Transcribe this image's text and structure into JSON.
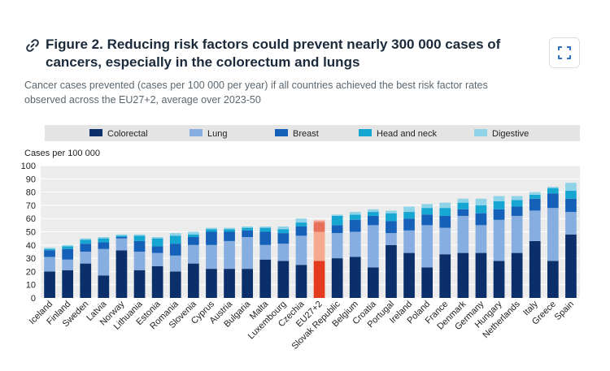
{
  "header": {
    "title": "Figure 2. Reducing risk factors could prevent nearly 300 000 cases of cancers, especially in the colorectum and lungs",
    "subtitle": "Cancer cases prevented (cases per 100 000 per year) if all countries achieved the best risk factor rates observed across the EU27+2, average over 2023-50",
    "link_icon": "link-icon",
    "expand_icon": "expand-icon"
  },
  "colors": {
    "Colorectal": "#0b2f6b",
    "Lung": "#86aee0",
    "Breast": "#1560b8",
    "Head and neck": "#16a6d2",
    "Digestive": "#8fd3e8",
    "eu_Colorectal": "#e43b1f",
    "eu_Lung": "#f7a98f",
    "eu_Breast": "#e8705a",
    "eu_Head and neck": "#ef8a76",
    "eu_Digestive": "#f6c0b2",
    "legend_bg": "#e4e4e4",
    "plot_bg": "#ececec",
    "grid": "#ffffff"
  },
  "chart_data": {
    "type": "bar",
    "stacked": true,
    "ylabel": "Cases per 100 000",
    "ylim": [
      0,
      100
    ],
    "yticks": [
      0,
      10,
      20,
      30,
      40,
      50,
      60,
      70,
      80,
      90,
      100
    ],
    "legend_position": "top",
    "highlight": "EU27+2",
    "categories": [
      "Iceland",
      "Finland",
      "Sweden",
      "Latvia",
      "Norway",
      "Lithuania",
      "Estonia",
      "Romania",
      "Slovenia",
      "Cyprus",
      "Austria",
      "Bulgaria",
      "Malta",
      "Luxembourg",
      "Czechia",
      "EU27+2",
      "Slovak Republic",
      "Belgium",
      "Croatia",
      "Portugal",
      "Ireland",
      "Poland",
      "France",
      "Denmark",
      "Germany",
      "Hungary",
      "Netherlands",
      "Italy",
      "Greece",
      "Spain"
    ],
    "series": [
      {
        "name": "Colorectal",
        "values": [
          20,
          21,
          26,
          17,
          36,
          21,
          24,
          20,
          26,
          22,
          22,
          22,
          29,
          28,
          25,
          28,
          30,
          31,
          23,
          40,
          34,
          23,
          33,
          34,
          34,
          28,
          34,
          43,
          28,
          48
        ]
      },
      {
        "name": "Lung",
        "values": [
          11,
          8,
          9,
          20,
          9,
          14,
          10,
          12,
          14,
          18,
          21,
          24,
          11,
          13,
          22,
          22,
          19,
          19,
          32,
          9,
          17,
          32,
          20,
          28,
          21,
          31,
          28,
          23,
          40,
          17
        ]
      },
      {
        "name": "Breast",
        "values": [
          5,
          8,
          6,
          5,
          1,
          8,
          5,
          9,
          6,
          10,
          7,
          5,
          10,
          8,
          7,
          7,
          6,
          9,
          7,
          9,
          9,
          8,
          9,
          5,
          9,
          8,
          7,
          9,
          11,
          10
        ]
      },
      {
        "name": "Head and neck",
        "values": [
          1,
          2,
          3,
          3,
          1,
          4,
          6,
          6,
          2,
          2,
          2,
          2,
          3,
          3,
          3,
          1,
          7,
          4,
          3,
          6,
          5,
          5,
          6,
          5,
          6,
          6,
          5,
          3,
          4,
          6
        ]
      },
      {
        "name": "Digestive",
        "values": [
          1,
          1,
          1,
          1,
          1,
          1,
          1,
          2,
          2,
          1,
          1,
          1,
          1,
          2,
          3,
          1,
          1,
          2,
          2,
          2,
          4,
          3,
          4,
          3,
          5,
          4,
          3,
          2,
          1,
          6
        ]
      }
    ]
  }
}
